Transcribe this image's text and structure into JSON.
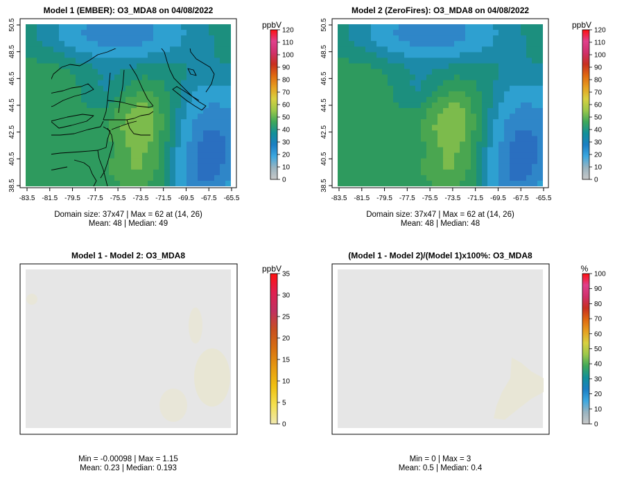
{
  "panels": [
    {
      "id": "model1",
      "title": "Model 1 (EMBER): O3_MDA8 on 04/08/2022",
      "x_ticks": [
        "-83.5",
        "-81.5",
        "-79.5",
        "-77.5",
        "-75.5",
        "-73.5",
        "-71.5",
        "-69.5",
        "-67.5",
        "-65.5"
      ],
      "y_ticks": [
        "38.5",
        "40.5",
        "42.5",
        "44.5",
        "46.5",
        "48.5",
        "50.5"
      ],
      "stat_line1": "Domain size: 37x47 | Max = 62 at (14, 26)",
      "stat_line2": "Mean: 48 |  Median: 49",
      "colorbar": {
        "unit": "ppbV",
        "labels": [
          "0",
          "10",
          "20",
          "30",
          "40",
          "50",
          "60",
          "70",
          "80",
          "90",
          "100",
          "110",
          "120"
        ]
      }
    },
    {
      "id": "model2",
      "title": "Model 2 (ZeroFires): O3_MDA8 on 04/08/2022",
      "x_ticks": [
        "-83.5",
        "-81.5",
        "-79.5",
        "-77.5",
        "-75.5",
        "-73.5",
        "-71.5",
        "-69.5",
        "-67.5",
        "-65.5"
      ],
      "y_ticks": [
        "38.5",
        "40.5",
        "42.5",
        "44.5",
        "46.5",
        "48.5",
        "50.5"
      ],
      "stat_line1": "Domain size: 37x47 | Max = 62 at (14, 26)",
      "stat_line2": "Mean: 48 |  Median: 48",
      "colorbar": {
        "unit": "ppbV",
        "labels": [
          "0",
          "10",
          "20",
          "30",
          "40",
          "50",
          "60",
          "70",
          "80",
          "90",
          "100",
          "110",
          "120"
        ]
      }
    },
    {
      "id": "diff",
      "title": "Model 1 - Model 2: O3_MDA8",
      "stat_line1": "Min = -0.00098 | Max = 1.15",
      "stat_line2": "Mean: 0.23 |  Median: 0.193",
      "colorbar": {
        "unit": "ppbV",
        "labels": [
          "0",
          "5",
          "10",
          "15",
          "20",
          "25",
          "30",
          "35"
        ]
      }
    },
    {
      "id": "pct",
      "title": "(Model 1 - Model 2)/(Model 1)x100%: O3_MDA8",
      "stat_line1": "Min = 0 | Max = 3",
      "stat_line2": "Mean: 0.5 |  Median: 0.4",
      "colorbar": {
        "unit": "%",
        "labels": [
          "0",
          "10",
          "20",
          "30",
          "40",
          "50",
          "60",
          "70",
          "80",
          "90",
          "100"
        ]
      }
    }
  ],
  "colors": {
    "ramp_full": [
      "#c8c8c8",
      "#9ab4c0",
      "#3da8e0",
      "#1b7fc4",
      "#12909a",
      "#3ea85a",
      "#9cc84a",
      "#d8d040",
      "#e6a020",
      "#e06a10",
      "#c83020",
      "#d0306a",
      "#e0408c",
      "#ff1010"
    ],
    "ramp_diff": [
      "#efe8b0",
      "#f4e050",
      "#f0c010",
      "#e69a10",
      "#d87010",
      "#c85020",
      "#c03060",
      "#e02050",
      "#ff1010"
    ],
    "field_panel_bg": "#e6e6e6"
  }
}
